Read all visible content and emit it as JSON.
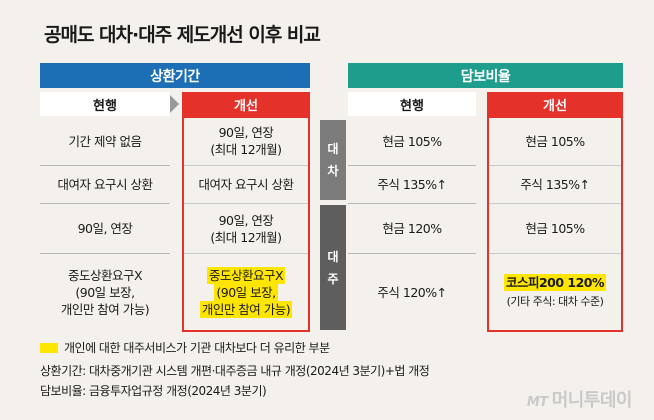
{
  "title": "공매도 대차·대주 제도개선 이후 비교",
  "sections": {
    "left": "상환기간",
    "right": "담보비율"
  },
  "col_heads": {
    "current": "현행",
    "improved": "개선"
  },
  "side_labels": {
    "lending": [
      "대",
      "차"
    ],
    "borrowing": [
      "대",
      "주"
    ]
  },
  "repay": {
    "rows": [
      {
        "current": [
          "기간 제약 없음"
        ],
        "improved": [
          "90일, 연장",
          "(최대 12개월)"
        ]
      },
      {
        "current": [
          "대여자 요구시 상환"
        ],
        "improved": [
          "대여자 요구시 상환"
        ]
      },
      {
        "current": [
          "90일, 연장"
        ],
        "improved": [
          "90일, 연장",
          "(최대 12개월)"
        ]
      },
      {
        "current": [
          "중도상환요구X",
          "(90일 보장,",
          "개인만 참여 가능)"
        ],
        "improved": [
          "중도상환요구X",
          "(90일 보장,",
          "개인만 참여 가능)"
        ]
      }
    ]
  },
  "collateral": {
    "rows": [
      {
        "current": "현금 105%",
        "improved": "현금 105%"
      },
      {
        "current": "주식 135%↑",
        "improved": "주식 135%↑"
      },
      {
        "current": "현금 120%",
        "improved": "현금 105%"
      },
      {
        "current": "주식 120%↑",
        "improved": "코스피200 120%",
        "improved_sub": "(기타 주식: 대차 수준)"
      }
    ]
  },
  "legend": "개인에 대한 대주서비스가 기관 대차보다 더 유리한 부분",
  "colors": {
    "blue": "#1c6fb5",
    "teal": "#1f9d8c",
    "red": "#e4322b",
    "highlight": "#ffe600"
  },
  "notes": [
    "상환기간: 대차중개기관 시스템 개편·대주증금 내규 개정(2024년 3분기)+법 개정",
    "담보비율: 금융투자업규정 개정(2024년 3분기)"
  ],
  "watermark": {
    "mt": "MT",
    "name": "머니투데이"
  }
}
